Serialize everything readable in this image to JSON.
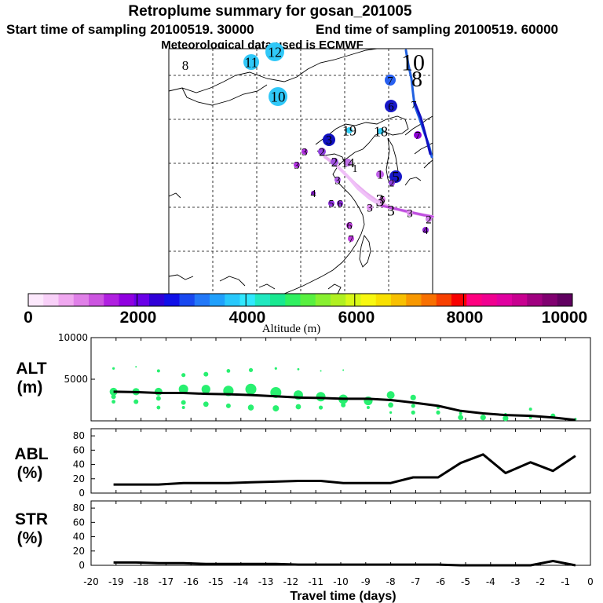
{
  "title": "Retroplume summary for gosan_201005",
  "subtitle": {
    "start": "Start time of sampling 20100519. 30000",
    "end": "End time of sampling 20100519. 60000",
    "met": "Meteorological data used is ECMWF"
  },
  "colorbar": {
    "label": "Altitude (m)",
    "tick_labels": [
      "0",
      "2000",
      "4000",
      "6000",
      "8000",
      "10000"
    ],
    "colors": [
      "#fce8fc",
      "#f8d0f8",
      "#f0a8f0",
      "#e080e8",
      "#cc55e0",
      "#b020e0",
      "#9000e0",
      "#6a00e8",
      "#3000d8",
      "#1010e8",
      "#1848f0",
      "#2278f8",
      "#20a0fc",
      "#28c8fc",
      "#30e8ff",
      "#20e8c0",
      "#18e890",
      "#30f060",
      "#58f040",
      "#88f030",
      "#b0f020",
      "#d8f818",
      "#f8f810",
      "#f8e000",
      "#f8c000",
      "#f89800",
      "#f87000",
      "#f84000",
      "#f80000",
      "#ff0080",
      "#f00090",
      "#e000a0",
      "#c80090",
      "#a00080",
      "#800070",
      "#600060"
    ]
  },
  "map": {
    "labels": [
      {
        "text": "8",
        "cx": 236,
        "cy": 83,
        "r": 0,
        "color": "#f8f8b0",
        "size": 17
      },
      {
        "text": "11",
        "cx": 320,
        "cy": 79,
        "r": 10,
        "color": "#30c8f8",
        "size": 18
      },
      {
        "text": "12",
        "cx": 350,
        "cy": 66,
        "r": 12,
        "color": "#30c8f8",
        "size": 18
      },
      {
        "text": "10",
        "cx": 354,
        "cy": 123,
        "r": 12,
        "color": "#30c8f8",
        "size": 19
      },
      {
        "text": "10",
        "cx": 526,
        "cy": 79,
        "r": 0,
        "color": "#30c8f8",
        "size": 30
      },
      {
        "text": "8",
        "cx": 531,
        "cy": 100,
        "r": 0,
        "color": "#1010e8",
        "size": 28
      },
      {
        "text": "7",
        "cx": 497,
        "cy": 102,
        "r": 7,
        "color": "#2860f0",
        "size": 15
      },
      {
        "text": "6",
        "cx": 498,
        "cy": 135,
        "r": 8,
        "color": "#1818c8",
        "size": 15
      },
      {
        "text": "7",
        "cx": 527,
        "cy": 133,
        "r": 0,
        "color": "#2860f0",
        "size": 14
      },
      {
        "text": "19",
        "cx": 445,
        "cy": 166,
        "r": 4,
        "color": "#30d0f8",
        "size": 18
      },
      {
        "text": "18",
        "cx": 485,
        "cy": 167,
        "r": 4,
        "color": "#30d0f8",
        "size": 18
      },
      {
        "text": "7",
        "cx": 532,
        "cy": 172,
        "r": 5,
        "color": "#9000d8",
        "size": 14
      },
      {
        "text": "3",
        "cx": 419,
        "cy": 178,
        "r": 8,
        "color": "#1010c0",
        "size": 16
      },
      {
        "text": "3",
        "cx": 388,
        "cy": 193,
        "r": 4,
        "color": "#b030e0",
        "size": 14
      },
      {
        "text": "2",
        "cx": 410,
        "cy": 193,
        "r": 5,
        "color": "#9040e0",
        "size": 15
      },
      {
        "text": "2",
        "cx": 426,
        "cy": 206,
        "r": 5,
        "color": "#a050e0",
        "size": 17
      },
      {
        "text": "14",
        "cx": 443,
        "cy": 207,
        "r": 5,
        "color": "#c070e8",
        "size": 17
      },
      {
        "text": "3",
        "cx": 378,
        "cy": 210,
        "r": 4,
        "color": "#b030e0",
        "size": 14
      },
      {
        "text": "1",
        "cx": 452,
        "cy": 214,
        "r": 0,
        "color": "#e8a8f0",
        "size": 14
      },
      {
        "text": "1",
        "cx": 484,
        "cy": 222,
        "r": 5,
        "color": "#c060e8",
        "size": 16
      },
      {
        "text": "5",
        "cx": 504,
        "cy": 225,
        "r": 8,
        "color": "#1818c8",
        "size": 19
      },
      {
        "text": "3",
        "cx": 430,
        "cy": 229,
        "r": 4,
        "color": "#b060e8",
        "size": 15
      },
      {
        "text": "2",
        "cx": 499,
        "cy": 233,
        "r": 4,
        "color": "#9040e0",
        "size": 13
      },
      {
        "text": "4",
        "cx": 399,
        "cy": 246,
        "r": 3,
        "color": "#9020d8",
        "size": 14
      },
      {
        "text": "5",
        "cx": 487,
        "cy": 254,
        "r": 4,
        "color": "#e080f0",
        "size": 14
      },
      {
        "text": "3",
        "cx": 484,
        "cy": 255,
        "r": 0,
        "color": "#d080e8",
        "size": 22
      },
      {
        "text": "5",
        "cx": 422,
        "cy": 259,
        "r": 4,
        "color": "#9030e0",
        "size": 14
      },
      {
        "text": "6",
        "cx": 433,
        "cy": 259,
        "r": 4,
        "color": "#9030e0",
        "size": 14
      },
      {
        "text": "3",
        "cx": 471,
        "cy": 264,
        "r": 4,
        "color": "#e090f0",
        "size": 15
      },
      {
        "text": "3",
        "cx": 498,
        "cy": 268,
        "r": 0,
        "color": "#d080e8",
        "size": 19
      },
      {
        "text": "3",
        "cx": 522,
        "cy": 271,
        "r": 4,
        "color": "#e090f0",
        "size": 15
      },
      {
        "text": "2",
        "cx": 546,
        "cy": 279,
        "r": 4,
        "color": "#d080e8",
        "size": 15
      },
      {
        "text": "6",
        "cx": 445,
        "cy": 287,
        "r": 4,
        "color": "#c040e0",
        "size": 14
      },
      {
        "text": "4",
        "cx": 542,
        "cy": 293,
        "r": 4,
        "color": "#9020d8",
        "size": 14
      },
      {
        "text": "7",
        "cx": 447,
        "cy": 304,
        "r": 4,
        "color": "#c040e0",
        "size": 14
      }
    ]
  },
  "chart_data": [
    {
      "type": "scatter",
      "name": "ALT",
      "label": "ALT",
      "unit": "(m)",
      "xlim": [
        -20,
        0
      ],
      "ylim": [
        0,
        10000
      ],
      "ytick_labels": [
        "5000",
        "10000"
      ],
      "x": [
        -19.1,
        -18.2,
        -17.3,
        -16.3,
        -15.4,
        -14.5,
        -13.6,
        -12.6,
        -11.7,
        -10.8,
        -9.9,
        -8.9,
        -8.0,
        -7.1,
        -6.1,
        -5.2,
        -4.3,
        -3.4,
        -2.4,
        -1.5,
        -0.6
      ],
      "median": [
        3500,
        3450,
        3350,
        3350,
        3250,
        3200,
        3100,
        2950,
        2800,
        2750,
        2650,
        2650,
        2500,
        2200,
        1800,
        1200,
        900,
        700,
        600,
        400,
        100
      ],
      "points": [
        [
          -19.1,
          6300,
          1.6
        ],
        [
          -19.1,
          3500,
          5
        ],
        [
          -19.1,
          2900,
          3
        ],
        [
          -19.1,
          2300,
          2.4
        ],
        [
          -18.2,
          6500,
          1
        ],
        [
          -18.2,
          3500,
          4.6
        ],
        [
          -18.2,
          2300,
          3
        ],
        [
          -17.3,
          6000,
          2
        ],
        [
          -17.3,
          3500,
          5
        ],
        [
          -17.3,
          2700,
          3
        ],
        [
          -17.3,
          1600,
          2.4
        ],
        [
          -16.3,
          5500,
          2.6
        ],
        [
          -16.3,
          3800,
          6
        ],
        [
          -16.3,
          2200,
          3
        ],
        [
          -16.3,
          1600,
          2
        ],
        [
          -15.4,
          5600,
          3
        ],
        [
          -15.4,
          3800,
          5.6
        ],
        [
          -15.4,
          2000,
          3.4
        ],
        [
          -14.5,
          6000,
          2.4
        ],
        [
          -14.5,
          3600,
          6.6
        ],
        [
          -14.5,
          1800,
          3
        ],
        [
          -13.6,
          6100,
          2.6
        ],
        [
          -13.6,
          3800,
          7
        ],
        [
          -13.6,
          1600,
          3.8
        ],
        [
          -12.6,
          6300,
          1.6
        ],
        [
          -12.6,
          3400,
          7
        ],
        [
          -12.6,
          1500,
          4
        ],
        [
          -11.7,
          6200,
          1.4
        ],
        [
          -11.7,
          3100,
          6
        ],
        [
          -11.7,
          1700,
          3.4
        ],
        [
          -10.8,
          6000,
          1
        ],
        [
          -10.8,
          2900,
          6
        ],
        [
          -10.8,
          1600,
          2.6
        ],
        [
          -9.9,
          6100,
          1
        ],
        [
          -9.9,
          2600,
          6
        ],
        [
          -9.9,
          1900,
          3
        ],
        [
          -8.9,
          2400,
          5.6
        ],
        [
          -8.9,
          1600,
          2
        ],
        [
          -8.0,
          3100,
          5
        ],
        [
          -8.0,
          1900,
          3.4
        ],
        [
          -8.0,
          1000,
          1.6
        ],
        [
          -7.1,
          2800,
          3.6
        ],
        [
          -7.1,
          1800,
          2.6
        ],
        [
          -7.1,
          1000,
          2.6
        ],
        [
          -6.1,
          1600,
          2
        ],
        [
          -6.1,
          1000,
          2.6
        ],
        [
          -5.2,
          400,
          3.4
        ],
        [
          -5.2,
          900,
          2
        ],
        [
          -4.3,
          400,
          3.6
        ],
        [
          -3.4,
          300,
          3.6
        ],
        [
          -3.4,
          800,
          1.6
        ],
        [
          -2.4,
          1400,
          2
        ],
        [
          -2.4,
          400,
          2
        ],
        [
          -1.5,
          600,
          3
        ],
        [
          -0.6,
          200,
          1.6
        ]
      ]
    },
    {
      "type": "line",
      "name": "ABL",
      "label": "ABL",
      "unit": "(%)",
      "xlim": [
        -20,
        0
      ],
      "ylim": [
        0,
        90
      ],
      "ytick_labels": [
        "0",
        "20",
        "40",
        "60",
        "80"
      ],
      "x": [
        -19.1,
        -18.2,
        -17.3,
        -16.3,
        -15.4,
        -14.5,
        -13.6,
        -12.6,
        -11.7,
        -10.8,
        -9.9,
        -8.9,
        -8.0,
        -7.1,
        -6.1,
        -5.2,
        -4.3,
        -3.4,
        -2.4,
        -1.5,
        -0.6
      ],
      "values": [
        12,
        12,
        12,
        14,
        14,
        14,
        15,
        16,
        17,
        17,
        14,
        14,
        14,
        22,
        22,
        42,
        54,
        28,
        43,
        31,
        52
      ]
    },
    {
      "type": "line",
      "name": "STR",
      "label": "STR",
      "unit": "(%)",
      "xlim": [
        -20,
        0
      ],
      "ylim": [
        0,
        90
      ],
      "ytick_labels": [
        "0",
        "20",
        "40",
        "60",
        "80"
      ],
      "xlabel": "Travel time (days)",
      "xtick_labels": [
        "-20",
        "-19",
        "-18",
        "-17",
        "-16",
        "-15",
        "-14",
        "-13",
        "-12",
        "-11",
        "-10",
        "-9",
        "-8",
        "-7",
        "-6",
        "-5",
        "-4",
        "-3",
        "-2",
        "-1",
        "0"
      ],
      "x": [
        -19.1,
        -18.2,
        -17.3,
        -16.3,
        -15.4,
        -14.5,
        -13.6,
        -12.6,
        -11.7,
        -10.8,
        -9.9,
        -8.9,
        -8.0,
        -7.1,
        -6.1,
        -5.2,
        -4.3,
        -3.4,
        -2.4,
        -1.5,
        -0.6
      ],
      "values": [
        4,
        4,
        3,
        3,
        2,
        2,
        2,
        2,
        1,
        1,
        1,
        1,
        1,
        1,
        1,
        0,
        0,
        0,
        0,
        6,
        0
      ]
    }
  ]
}
